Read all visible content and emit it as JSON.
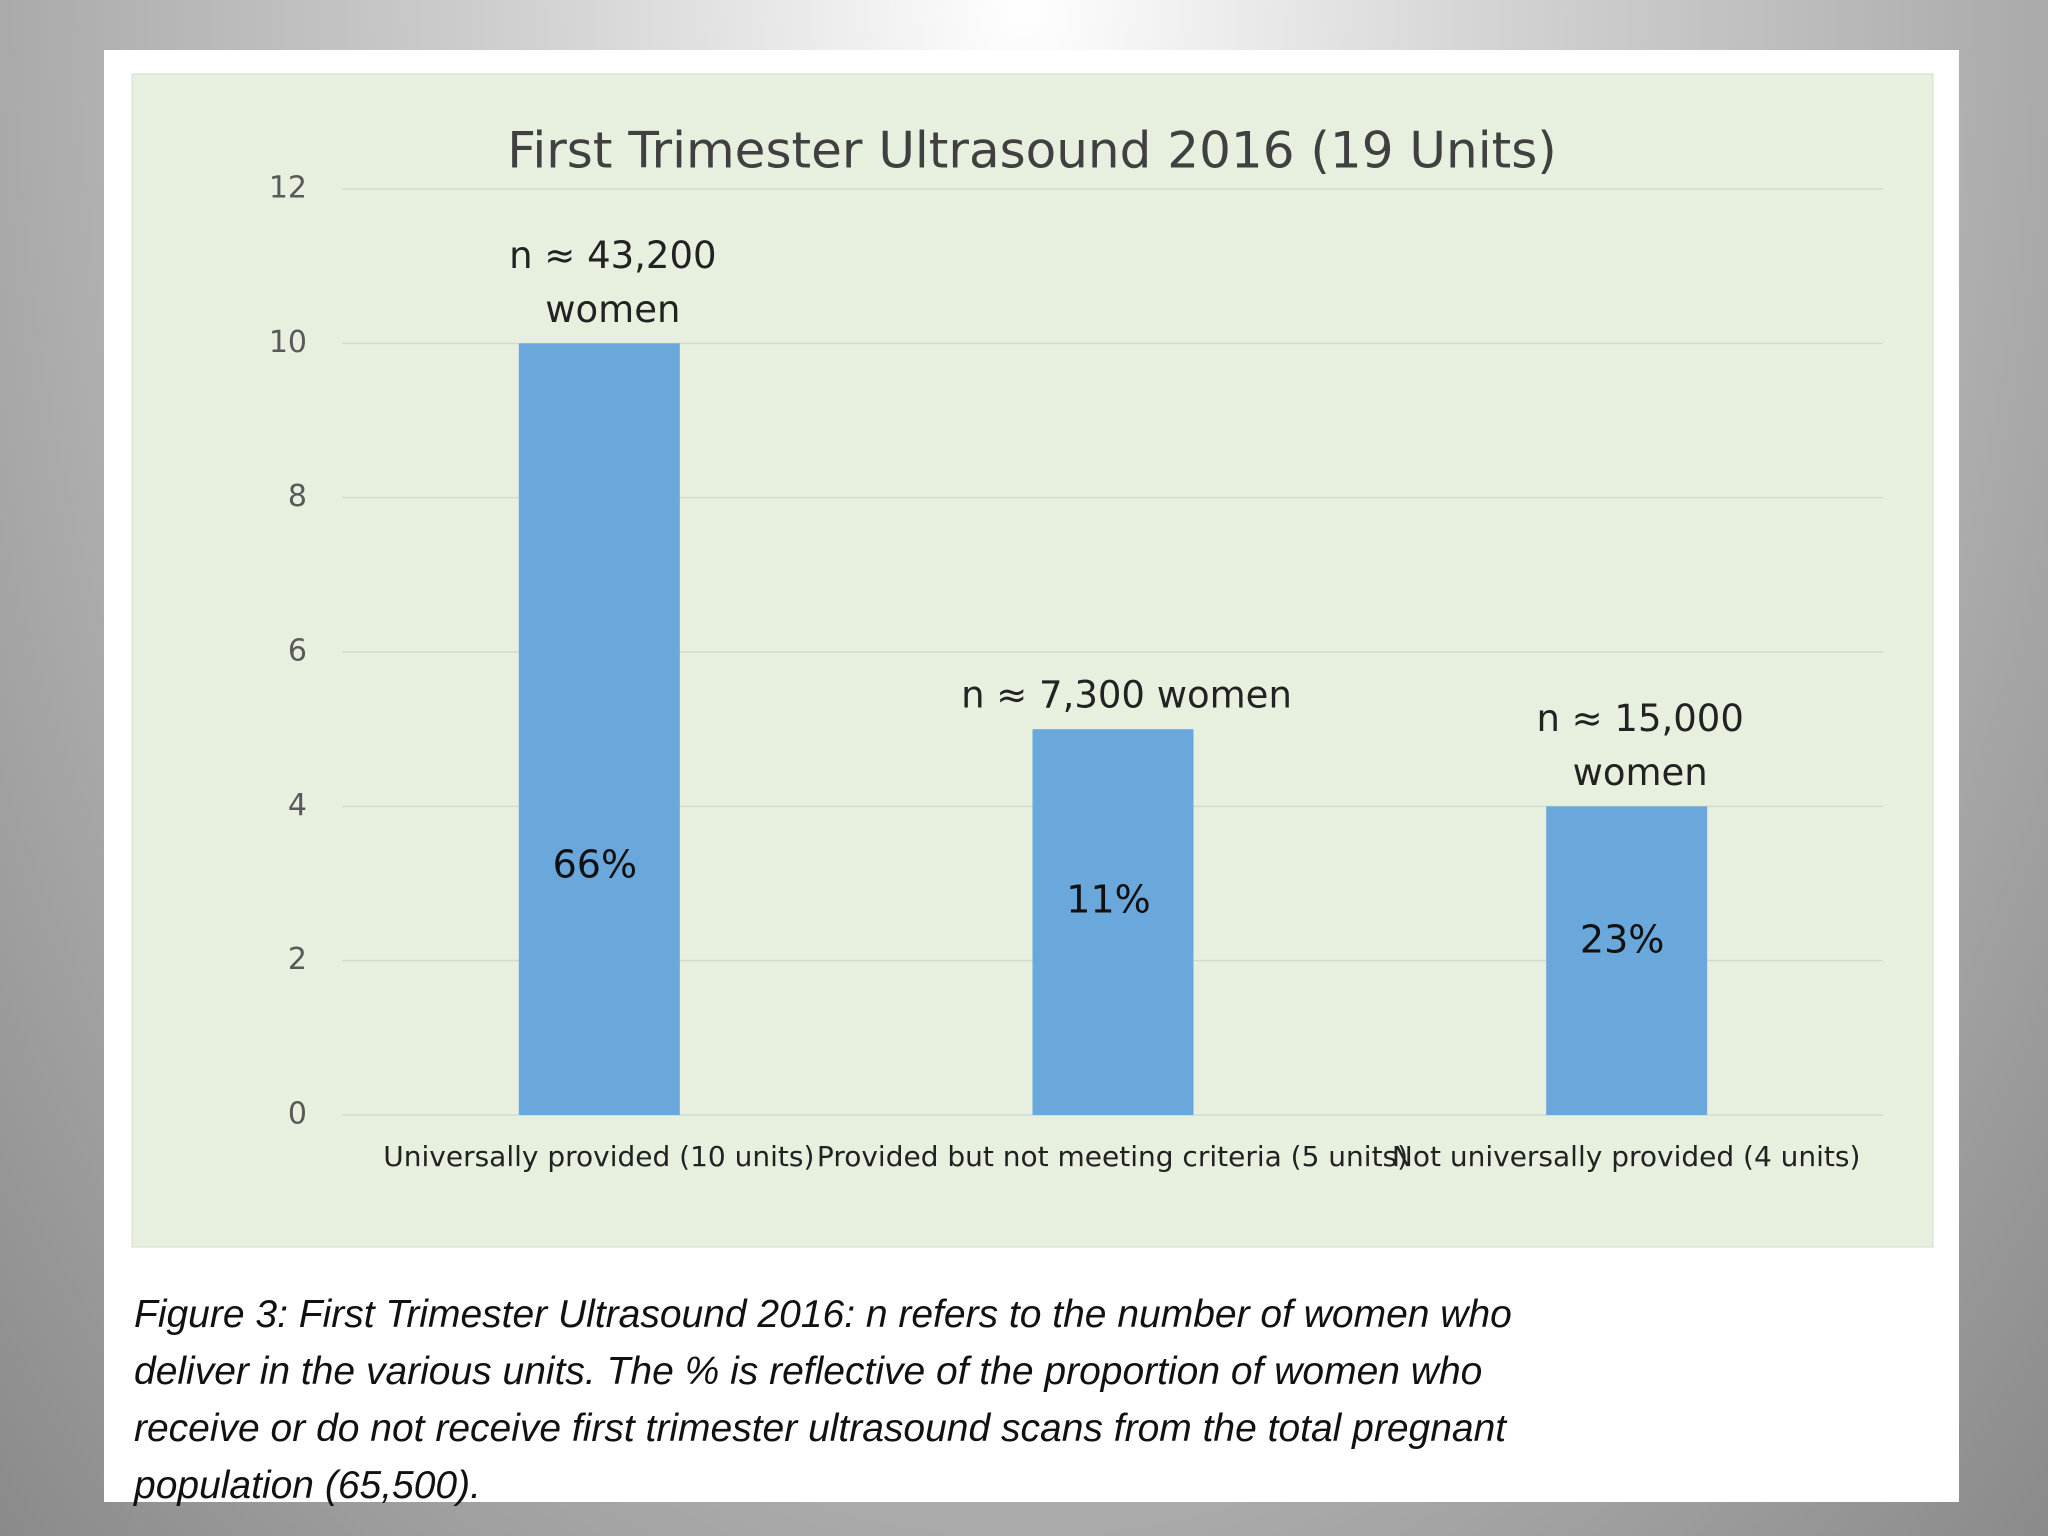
{
  "chart_data": {
    "type": "bar",
    "title": "First Trimester Ultrasound 2016 (19 Units)",
    "categories": [
      "Universally provided (10 units)",
      "Provided but not meeting criteria (5 units)",
      "Not universally provided (4 units)"
    ],
    "values": [
      10,
      5,
      4
    ],
    "inner_labels": [
      "66%",
      "11%",
      "23%"
    ],
    "top_labels": [
      [
        "n ≈ 43,200",
        "women"
      ],
      [
        "n ≈ 7,300 women"
      ],
      [
        "n ≈ 15,000",
        "women"
      ]
    ],
    "color": "#6aa8db",
    "ylim": [
      0,
      12
    ],
    "yticks": [
      0,
      2,
      4,
      6,
      8,
      10,
      12
    ],
    "grid": true
  },
  "caption": [
    "Figure 3: First Trimester Ultrasound 2016: n refers to the number of women who",
    "deliver in the various units. The % is reflective of the proportion of women who",
    "receive or do not receive first trimester ultrasound scans from the total pregnant",
    "population (65,500)."
  ]
}
